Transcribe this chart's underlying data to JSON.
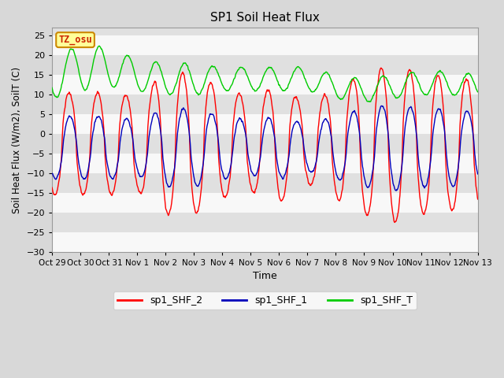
{
  "title": "SP1 Soil Heat Flux",
  "xlabel": "Time",
  "ylabel": "Soil Heat Flux (W/m2), SoilT (C)",
  "ylim": [
    -30,
    27
  ],
  "yticks": [
    -30,
    -25,
    -20,
    -15,
    -10,
    -5,
    0,
    5,
    10,
    15,
    20,
    25
  ],
  "xtick_labels": [
    "Oct 29",
    "Oct 30",
    "Oct 31",
    "Nov 1",
    "Nov 2",
    "Nov 3",
    "Nov 4",
    "Nov 5",
    "Nov 6",
    "Nov 7",
    "Nov 8",
    "Nov 9",
    "Nov 10",
    "Nov 11",
    "Nov 12",
    "Nov 13"
  ],
  "color_shf2": "#ff0000",
  "color_shf1": "#0000bb",
  "color_shft": "#00cc00",
  "legend_labels": [
    "sp1_SHF_2",
    "sp1_SHF_1",
    "sp1_SHF_T"
  ],
  "bg_color": "#d8d8d8",
  "band_light": "#f8f8f8",
  "band_dark": "#e0e0e0",
  "tz_label": "TZ_osu",
  "tz_bg": "#ffff99",
  "tz_border": "#cc8800"
}
